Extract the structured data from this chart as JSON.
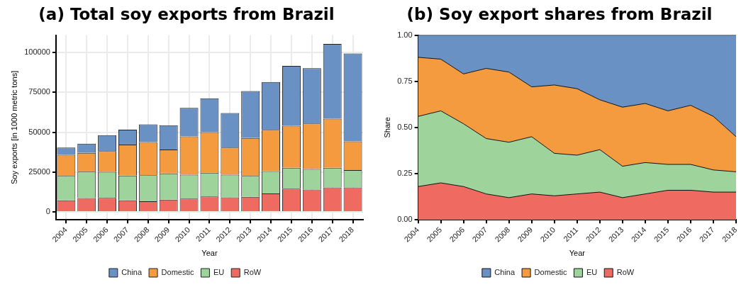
{
  "chart_data": [
    {
      "type": "bar",
      "title": "(a) Total soy exports from Brazil",
      "xlabel": "Year",
      "ylabel": "Soy exports [in 1000 metric tons]",
      "categories": [
        "2004",
        "2005",
        "2006",
        "2007",
        "2008",
        "2009",
        "2010",
        "2011",
        "2012",
        "2013",
        "2014",
        "2015",
        "2016",
        "2017",
        "2018"
      ],
      "stacked": true,
      "ylim": [
        -5000,
        111000
      ],
      "yticks": [
        0,
        25000,
        50000,
        75000,
        100000
      ],
      "grid": true,
      "legend": "bottom",
      "series": [
        {
          "name": "RoW",
          "color": "#ef6a60",
          "values": [
            7200,
            8600,
            8800,
            7200,
            6700,
            7700,
            8300,
            9600,
            9100,
            9400,
            11600,
            14500,
            14000,
            15300,
            15300
          ]
        },
        {
          "name": "EU",
          "color": "#9ed49b",
          "values": [
            15400,
            16600,
            16300,
            15600,
            16300,
            16400,
            15000,
            15000,
            14200,
            13200,
            14000,
            13200,
            12900,
            12400,
            10900
          ]
        },
        {
          "name": "Domestic",
          "color": "#f59b3f",
          "values": [
            13200,
            11800,
            13000,
            19500,
            20800,
            15000,
            24100,
            25400,
            17100,
            23800,
            25900,
            26400,
            28600,
            30800,
            18100
          ]
        },
        {
          "name": "China",
          "color": "#6a91c4",
          "values": [
            4600,
            5800,
            10100,
            9300,
            11100,
            15300,
            17900,
            21300,
            21700,
            29500,
            30100,
            37600,
            34700,
            47000,
            55200
          ]
        }
      ]
    },
    {
      "type": "area",
      "title": "(b) Soy export shares from Brazil",
      "xlabel": "Year",
      "ylabel": "Share",
      "categories": [
        "2004",
        "2005",
        "2006",
        "2007",
        "2008",
        "2009",
        "2010",
        "2011",
        "2012",
        "2013",
        "2014",
        "2015",
        "2016",
        "2017",
        "2018"
      ],
      "stacked": true,
      "ylim": [
        0,
        1
      ],
      "yticks": [
        {
          "value": 0,
          "label": "0.00"
        },
        {
          "value": 0.25,
          "label": "0.25"
        },
        {
          "value": 0.5,
          "label": "0.50"
        },
        {
          "value": 0.75,
          "label": "0.75"
        },
        {
          "value": 1,
          "label": "1.00"
        }
      ],
      "grid": false,
      "legend": "bottom",
      "series": [
        {
          "name": "RoW",
          "color": "#ef6a60",
          "values": [
            0.18,
            0.2,
            0.18,
            0.14,
            0.12,
            0.14,
            0.13,
            0.14,
            0.15,
            0.12,
            0.14,
            0.16,
            0.16,
            0.15,
            0.15
          ]
        },
        {
          "name": "EU",
          "color": "#9ed49b",
          "values": [
            0.38,
            0.39,
            0.34,
            0.3,
            0.3,
            0.31,
            0.23,
            0.21,
            0.23,
            0.17,
            0.17,
            0.14,
            0.14,
            0.12,
            0.11
          ]
        },
        {
          "name": "Domestic",
          "color": "#f59b3f",
          "values": [
            0.32,
            0.28,
            0.27,
            0.38,
            0.38,
            0.27,
            0.37,
            0.36,
            0.27,
            0.32,
            0.32,
            0.29,
            0.32,
            0.29,
            0.19
          ]
        },
        {
          "name": "China",
          "color": "#6a91c4",
          "values": [
            0.12,
            0.13,
            0.21,
            0.18,
            0.2,
            0.28,
            0.27,
            0.29,
            0.35,
            0.39,
            0.37,
            0.41,
            0.38,
            0.44,
            0.55
          ]
        }
      ]
    }
  ]
}
